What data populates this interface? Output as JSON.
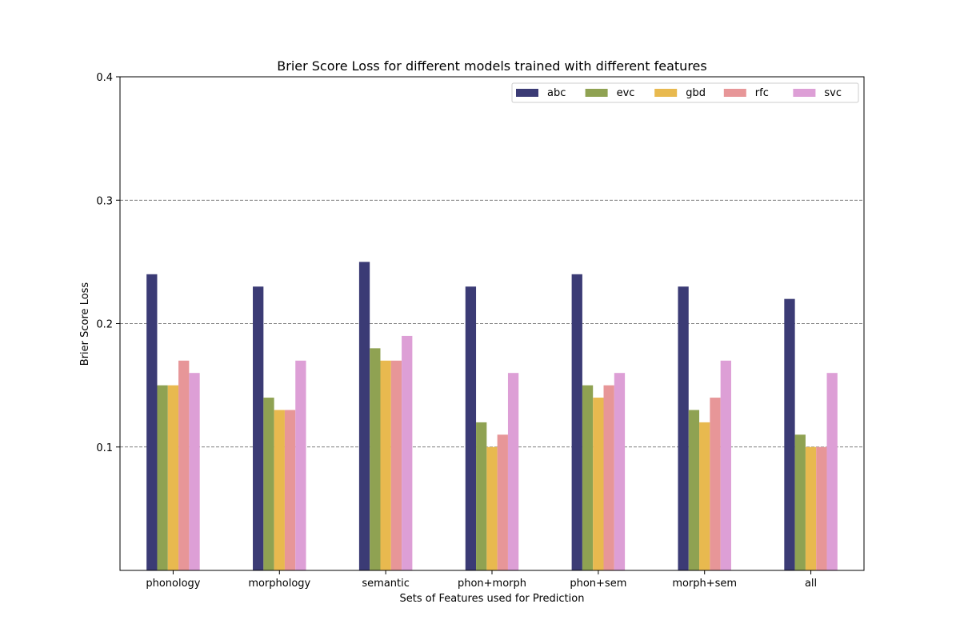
{
  "chart_data": {
    "type": "bar",
    "title": "Brier Score Loss for different models trained with different features",
    "xlabel": "Sets of Features used for Prediction",
    "ylabel": "Brier Score Loss",
    "ylim": [
      0,
      0.4
    ],
    "yticks": [
      "0.1",
      "0.2",
      "0.3",
      "0.4"
    ],
    "grid": "horizontal dashed",
    "legend_position": "top-right",
    "categories": [
      "phonology",
      "morphology",
      "semantic",
      "phon+morph",
      "phon+sem",
      "morph+sem",
      "all"
    ],
    "series": [
      {
        "name": "abc",
        "color": "#3b3b75",
        "values": [
          0.24,
          0.23,
          0.25,
          0.23,
          0.24,
          0.23,
          0.22
        ]
      },
      {
        "name": "evc",
        "color": "#8fa252",
        "values": [
          0.15,
          0.14,
          0.18,
          0.12,
          0.15,
          0.13,
          0.11
        ]
      },
      {
        "name": "gbd",
        "color": "#e8b94f",
        "values": [
          0.15,
          0.13,
          0.17,
          0.1,
          0.14,
          0.12,
          0.1
        ]
      },
      {
        "name": "rfc",
        "color": "#e79698",
        "values": [
          0.17,
          0.13,
          0.17,
          0.11,
          0.15,
          0.14,
          0.1
        ]
      },
      {
        "name": "svc",
        "color": "#dd9fd6",
        "values": [
          0.16,
          0.17,
          0.19,
          0.16,
          0.16,
          0.17,
          0.16
        ]
      }
    ]
  }
}
